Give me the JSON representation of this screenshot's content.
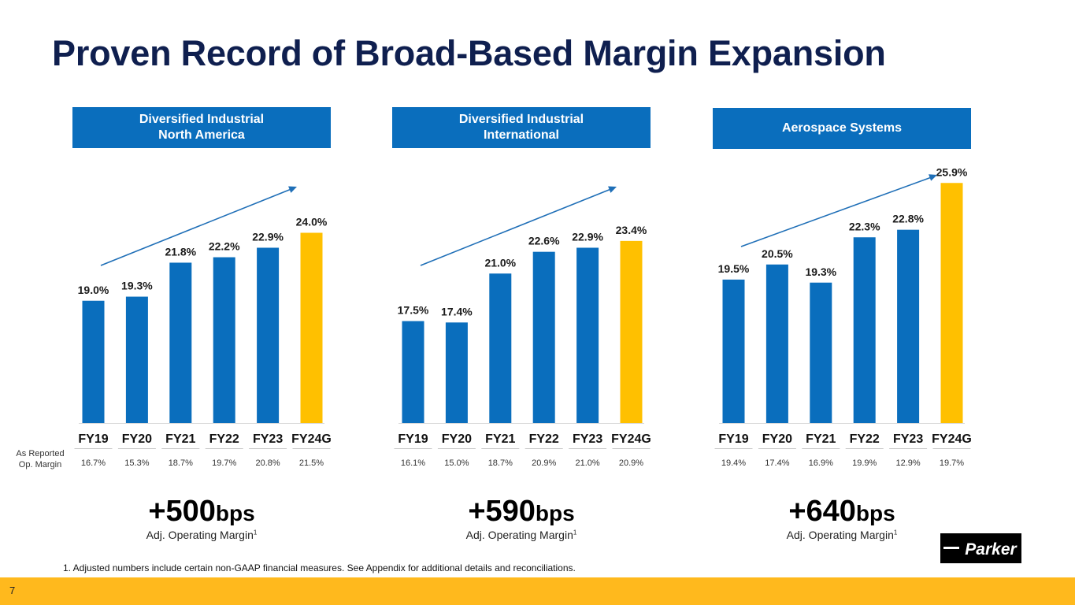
{
  "title": "Proven Record of Broad-Based Margin Expansion",
  "row_caption": "As Reported\nOp. Margin",
  "colors": {
    "bar": "#0a6ebd",
    "highlight_bar": "#ffc000",
    "header": "#0a6ebd",
    "title": "#0f1f4f",
    "footer": "#ffb91d",
    "arrow": "#1f6fb7"
  },
  "chart_data": [
    {
      "type": "bar",
      "title": "Diversified Industrial\nNorth America",
      "categories": [
        "FY19",
        "FY20",
        "FY21",
        "FY22",
        "FY23",
        "FY24G"
      ],
      "values": [
        19.0,
        19.3,
        21.8,
        22.2,
        22.9,
        24.0
      ],
      "data_labels": [
        "19.0%",
        "19.3%",
        "21.8%",
        "22.2%",
        "22.9%",
        "24.0%"
      ],
      "highlight_index": 5,
      "as_reported": [
        "16.7%",
        "15.3%",
        "18.7%",
        "19.7%",
        "20.8%",
        "21.5%"
      ],
      "ylim": [
        10,
        30
      ],
      "grid": false,
      "trend_arrow": true,
      "xlabel": "",
      "ylabel": ""
    },
    {
      "type": "bar",
      "title": "Diversified Industrial\nInternational",
      "categories": [
        "FY19",
        "FY20",
        "FY21",
        "FY22",
        "FY23",
        "FY24G"
      ],
      "values": [
        17.5,
        17.4,
        21.0,
        22.6,
        22.9,
        23.4
      ],
      "data_labels": [
        "17.5%",
        "17.4%",
        "21.0%",
        "22.6%",
        "22.9%",
        "23.4%"
      ],
      "highlight_index": 5,
      "as_reported": [
        "16.1%",
        "15.0%",
        "18.7%",
        "20.9%",
        "21.0%",
        "20.9%"
      ],
      "ylim": [
        10,
        30
      ],
      "grid": false,
      "trend_arrow": true,
      "xlabel": "",
      "ylabel": ""
    },
    {
      "type": "bar",
      "title": "Aerospace Systems",
      "categories": [
        "FY19",
        "FY20",
        "FY21",
        "FY22",
        "FY23",
        "FY24G"
      ],
      "values": [
        19.5,
        20.5,
        19.3,
        22.3,
        22.8,
        25.9
      ],
      "data_labels": [
        "19.5%",
        "20.5%",
        "19.3%",
        "22.3%",
        "22.8%",
        "25.9%"
      ],
      "highlight_index": 5,
      "as_reported": [
        "19.4%",
        "17.4%",
        "16.9%",
        "19.9%",
        "12.9%",
        "19.7%"
      ],
      "ylim": [
        10,
        28
      ],
      "grid": false,
      "trend_arrow": true,
      "xlabel": "",
      "ylabel": ""
    }
  ],
  "summaries": [
    {
      "value": "+500",
      "unit": "bps",
      "label": "Adj. Operating Margin",
      "footnote_ref": "1"
    },
    {
      "value": "+590",
      "unit": "bps",
      "label": "Adj. Operating Margin",
      "footnote_ref": "1"
    },
    {
      "value": "+640",
      "unit": "bps",
      "label": "Adj. Operating Margin",
      "footnote_ref": "1"
    }
  ],
  "footnote": "1. Adjusted numbers include certain non-GAAP financial measures. See Appendix for additional details and reconciliations.",
  "page_number": "7",
  "logo_text": "Parker"
}
